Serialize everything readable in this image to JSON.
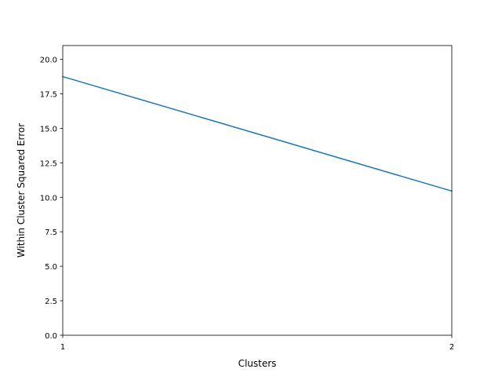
{
  "chart_data": {
    "type": "line",
    "title": "",
    "xlabel": "Clusters",
    "ylabel": "Within Cluster Squared Error",
    "x": [
      1,
      2
    ],
    "series": [
      {
        "values": [
          18.75,
          10.45
        ],
        "color": "#1f77b4"
      }
    ],
    "xlim": [
      1,
      2
    ],
    "ylim": [
      0,
      21
    ],
    "xticks": [
      1,
      2
    ],
    "xtick_labels": [
      "1",
      "2"
    ],
    "yticks": [
      0,
      2.5,
      5,
      7.5,
      10,
      12.5,
      15,
      17.5,
      20
    ],
    "ytick_labels": [
      "0.0",
      "2.5",
      "5.0",
      "7.5",
      "10.0",
      "12.5",
      "15.0",
      "17.5",
      "20.0"
    ],
    "grid": false,
    "legend": "none"
  }
}
